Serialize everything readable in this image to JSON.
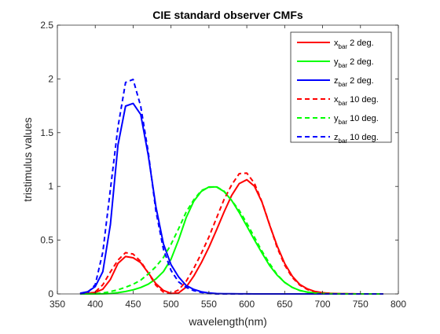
{
  "chart_data": {
    "type": "line",
    "title": "CIE standard observer CMFs",
    "xlabel": "wavelength(nm)",
    "ylabel": "tristimulus values",
    "xlim": [
      350,
      800
    ],
    "ylim": [
      0,
      2.5
    ],
    "xticks": [
      350,
      400,
      450,
      500,
      550,
      600,
      650,
      700,
      750,
      800
    ],
    "yticks": [
      0,
      0.5,
      1,
      1.5,
      2,
      2.5
    ],
    "xtick_labels": [
      "350",
      "400",
      "450",
      "500",
      "550",
      "600",
      "650",
      "700",
      "750",
      "800"
    ],
    "ytick_labels": [
      "0",
      "0.5",
      "1",
      "1.5",
      "2",
      "2.5"
    ],
    "grid": false,
    "legend_position": "top-right",
    "x": [
      380,
      390,
      400,
      410,
      420,
      430,
      440,
      450,
      460,
      470,
      480,
      490,
      500,
      510,
      520,
      530,
      540,
      550,
      560,
      570,
      580,
      590,
      600,
      610,
      620,
      630,
      640,
      650,
      660,
      670,
      680,
      690,
      700,
      710,
      720,
      730,
      740,
      750,
      760,
      770,
      780
    ],
    "series": [
      {
        "name": "x",
        "subscript": "bar",
        "suffix": " 2 deg.",
        "color": "#ff0000",
        "dash": "solid",
        "values": [
          0.0014,
          0.0042,
          0.0143,
          0.0435,
          0.1344,
          0.2839,
          0.3483,
          0.3362,
          0.2908,
          0.1954,
          0.0956,
          0.032,
          0.0049,
          0.0093,
          0.0633,
          0.1655,
          0.2904,
          0.4334,
          0.5945,
          0.7621,
          0.9163,
          1.0263,
          1.0622,
          1.0026,
          0.8544,
          0.6424,
          0.4479,
          0.2835,
          0.1649,
          0.0874,
          0.0468,
          0.0227,
          0.0114,
          0.0058,
          0.0029,
          0.0014,
          0.0007,
          0.0003,
          0.0002,
          0.0001,
          0.0
        ]
      },
      {
        "name": "y",
        "subscript": "bar",
        "suffix": " 2 deg.",
        "color": "#00ff00",
        "dash": "solid",
        "values": [
          0.0,
          0.0001,
          0.0004,
          0.0012,
          0.004,
          0.0116,
          0.023,
          0.038,
          0.06,
          0.091,
          0.139,
          0.208,
          0.323,
          0.503,
          0.71,
          0.862,
          0.954,
          0.995,
          0.995,
          0.952,
          0.87,
          0.757,
          0.631,
          0.503,
          0.381,
          0.265,
          0.175,
          0.107,
          0.061,
          0.032,
          0.017,
          0.0082,
          0.0041,
          0.0021,
          0.001,
          0.0005,
          0.0003,
          0.0001,
          0.0001,
          0.0,
          0.0
        ]
      },
      {
        "name": "z",
        "subscript": "bar",
        "suffix": " 2 deg.",
        "color": "#0000ff",
        "dash": "solid",
        "values": [
          0.0065,
          0.0201,
          0.0679,
          0.2074,
          0.6456,
          1.3856,
          1.7471,
          1.7721,
          1.6692,
          1.2876,
          0.813,
          0.4652,
          0.272,
          0.1582,
          0.0782,
          0.0422,
          0.0203,
          0.0087,
          0.0039,
          0.0021,
          0.0017,
          0.0011,
          0.0008,
          0.0003,
          0.0002,
          0.0,
          0.0,
          0.0,
          0.0,
          0.0,
          0.0,
          0.0,
          0.0,
          0.0,
          0.0,
          0.0,
          0.0,
          0.0,
          0.0,
          0.0,
          0.0
        ]
      },
      {
        "name": "x",
        "subscript": "bar",
        "suffix": " 10 deg.",
        "color": "#ff0000",
        "dash": "dashed",
        "values": [
          0.0002,
          0.0024,
          0.0191,
          0.0847,
          0.2045,
          0.3147,
          0.3837,
          0.3707,
          0.3023,
          0.1956,
          0.0805,
          0.0162,
          0.0038,
          0.0375,
          0.1177,
          0.2365,
          0.3768,
          0.5298,
          0.7052,
          0.8787,
          1.0142,
          1.1185,
          1.124,
          1.0305,
          0.8563,
          0.6475,
          0.4316,
          0.2683,
          0.1526,
          0.0813,
          0.0409,
          0.0199,
          0.0096,
          0.0046,
          0.0022,
          0.001,
          0.0005,
          0.0003,
          0.0001,
          0.0001,
          0.0
        ]
      },
      {
        "name": "y",
        "subscript": "bar",
        "suffix": " 10 deg.",
        "color": "#00ff00",
        "dash": "dashed",
        "values": [
          0.0,
          0.0003,
          0.002,
          0.0088,
          0.0214,
          0.0387,
          0.0621,
          0.0895,
          0.1282,
          0.1852,
          0.2536,
          0.3391,
          0.4608,
          0.6067,
          0.7618,
          0.8752,
          0.962,
          0.9918,
          0.9973,
          0.9556,
          0.8689,
          0.7774,
          0.6583,
          0.528,
          0.3981,
          0.2835,
          0.1798,
          0.1076,
          0.0603,
          0.0318,
          0.0159,
          0.0077,
          0.0037,
          0.0018,
          0.0008,
          0.0004,
          0.0002,
          0.0001,
          0.0,
          0.0,
          0.0
        ]
      },
      {
        "name": "z",
        "subscript": "bar",
        "suffix": " 10 deg.",
        "color": "#0000ff",
        "dash": "dashed",
        "values": [
          0.0007,
          0.0105,
          0.086,
          0.3894,
          0.9725,
          1.5535,
          1.9673,
          1.9948,
          1.7454,
          1.3176,
          0.7721,
          0.4153,
          0.2185,
          0.112,
          0.0607,
          0.0305,
          0.0137,
          0.004,
          0.0,
          0.0,
          0.0,
          0.0,
          0.0,
          0.0,
          0.0,
          0.0,
          0.0,
          0.0,
          0.0,
          0.0,
          0.0,
          0.0,
          0.0,
          0.0,
          0.0,
          0.0,
          0.0,
          0.0,
          0.0,
          0.0,
          0.0
        ]
      }
    ]
  }
}
